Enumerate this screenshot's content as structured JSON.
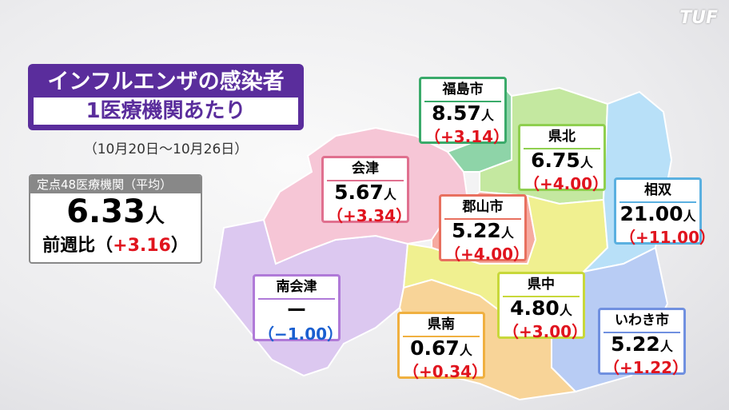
{
  "logo": "TUF",
  "title": {
    "line1": "インフルエンザの感染者",
    "line2": "1医療機関あたり"
  },
  "date_range": "（10月20日～10月26日）",
  "average": {
    "header": "定点48医療機関（平均）",
    "value": "6.33",
    "unit": "人",
    "compare_label": "前週比",
    "open": "（",
    "change": "+3.16",
    "close": "）"
  },
  "regions": [
    {
      "name": "福島市",
      "value": "8.57",
      "unit": "人",
      "change": "（+3.14）",
      "trend": "up",
      "color": "#3aaa6a"
    },
    {
      "name": "県北",
      "value": "6.75",
      "unit": "人",
      "change": "（+4.00）",
      "trend": "up",
      "color": "#8fcf4f"
    },
    {
      "name": "会津",
      "value": "5.67",
      "unit": "人",
      "change": "（+3.34）",
      "trend": "up",
      "color": "#e0708f"
    },
    {
      "name": "郡山市",
      "value": "5.22",
      "unit": "人",
      "change": "（+4.00）",
      "trend": "up",
      "color": "#e8705f"
    },
    {
      "name": "相双",
      "value": "21.00",
      "unit": "人",
      "change": "（+11.00）",
      "trend": "up",
      "color": "#5ab0e0"
    },
    {
      "name": "南会津",
      "value": "ー",
      "unit": "",
      "change": "（−1.00）",
      "trend": "down",
      "color": "#b07ad8"
    },
    {
      "name": "県中",
      "value": "4.80",
      "unit": "人",
      "change": "（+3.00）",
      "trend": "up",
      "color": "#c8d83a"
    },
    {
      "name": "県南",
      "value": "0.67",
      "unit": "人",
      "change": "（+0.34）",
      "trend": "up",
      "color": "#f0b040"
    },
    {
      "name": "いわき市",
      "value": "5.22",
      "unit": "人",
      "change": "（+1.22）",
      "trend": "up",
      "color": "#7090e0"
    }
  ]
}
